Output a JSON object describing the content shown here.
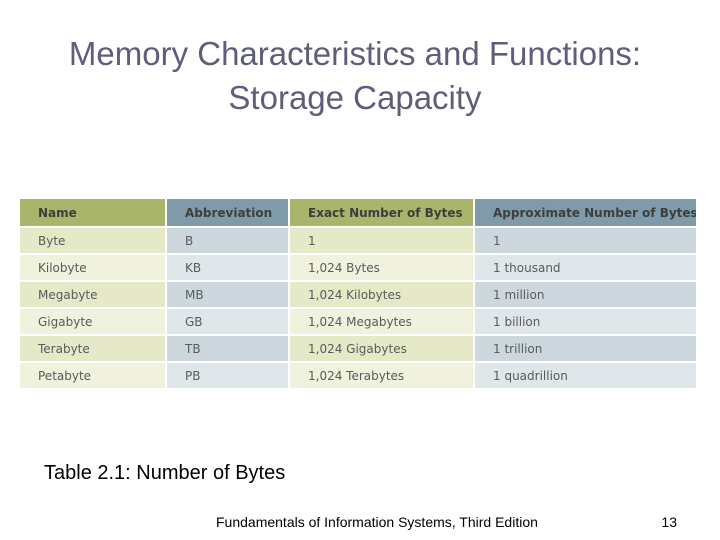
{
  "title": {
    "line1": "Memory Characteristics and Functions:",
    "line2": "Storage Capacity"
  },
  "table": {
    "headers": [
      "Name",
      "Abbreviation",
      "Exact Number of Bytes",
      "Approximate Number of Bytes"
    ],
    "rows": [
      [
        "Byte",
        "B",
        "1",
        "1"
      ],
      [
        "Kilobyte",
        "KB",
        "1,024 Bytes",
        "1 thousand"
      ],
      [
        "Megabyte",
        "MB",
        "1,024 Kilobytes",
        "1 million"
      ],
      [
        "Gigabyte",
        "GB",
        "1,024 Megabytes",
        "1 billion"
      ],
      [
        "Terabyte",
        "TB",
        "1,024 Gigabytes",
        "1 trillion"
      ],
      [
        "Petabyte",
        "PB",
        "1,024 Terabytes",
        "1 quadrillion"
      ]
    ]
  },
  "caption": "Table 2.1: Number of Bytes",
  "footer": "Fundamentals of Information Systems, Third Edition",
  "page_number": "13",
  "colors": {
    "title": "#5e5e7a",
    "header_green": "#a9b56a",
    "header_blue": "#7f9ba9"
  }
}
